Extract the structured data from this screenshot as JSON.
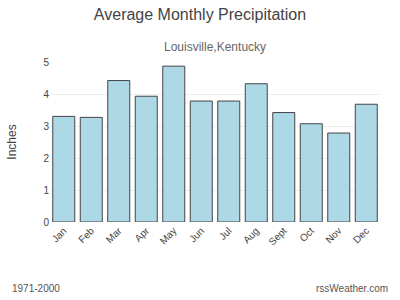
{
  "chart_data": {
    "type": "bar",
    "title": "Average Monthly Precipitation",
    "subtitle": "Louisville,Kentucky",
    "y_label": "Inches",
    "categories": [
      "Jan",
      "Feb",
      "Mar",
      "Apr",
      "May",
      "Jun",
      "Jul",
      "Aug",
      "Sept",
      "Oct",
      "Nov",
      "Dec"
    ],
    "values": [
      3.3,
      3.27,
      4.42,
      3.93,
      4.87,
      3.78,
      3.78,
      4.32,
      3.42,
      3.07,
      2.78,
      3.68
    ],
    "color": "#add8e6",
    "ylim": [
      0.0,
      5.0
    ],
    "yticks": [
      0,
      1,
      2,
      3,
      4,
      5
    ],
    "grid": true,
    "annotations": [
      "1971-2000",
      "rssWeather.com"
    ]
  }
}
